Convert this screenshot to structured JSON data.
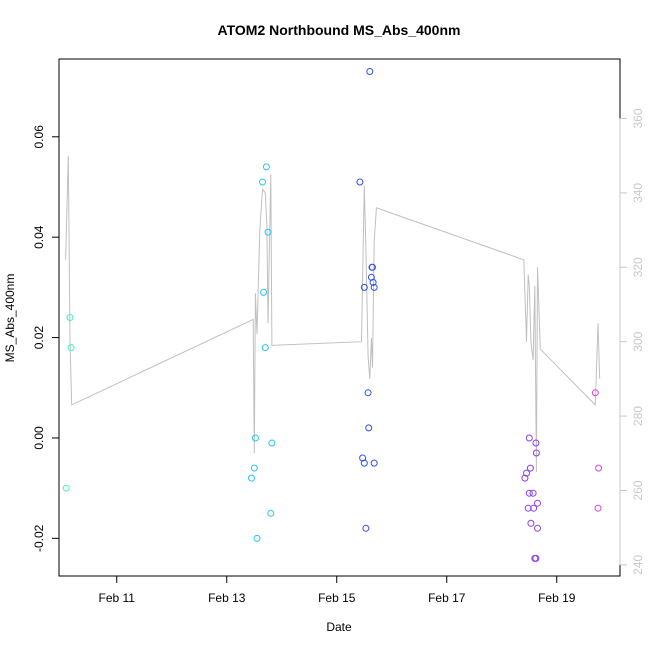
{
  "chart_data": {
    "type": "scatter",
    "title": "ATOM2 Northbound MS_Abs_400nm",
    "xlabel": "Date",
    "ylabel": "MS_Abs_400nm",
    "x_ticks": [
      "Feb 11",
      "Feb 13",
      "Feb 15",
      "Feb 17",
      "Feb 19"
    ],
    "x_tick_days": [
      11,
      13,
      15,
      17,
      19
    ],
    "xlim": [
      9.95,
      20.15
    ],
    "ylim": [
      -0.0275,
      0.0755
    ],
    "y_ticks": [
      -0.02,
      0.0,
      0.02,
      0.04,
      0.06
    ],
    "y_tick_labels": [
      "-0.02",
      "0.00",
      "0.02",
      "0.04",
      "0.06"
    ],
    "y2lim": [
      237,
      376
    ],
    "y2_ticks": [
      240,
      260,
      280,
      300,
      320,
      340,
      360
    ],
    "y2_tick_labels": [
      "240",
      "260",
      "280",
      "300",
      "320",
      "340",
      "360"
    ],
    "grid": false,
    "legend": "none",
    "series": [
      {
        "color": "#3df5c0",
        "points": [
          [
            10.08,
            -0.01
          ],
          [
            10.15,
            0.024
          ],
          [
            10.17,
            0.018
          ]
        ]
      },
      {
        "color": "#28c6ee",
        "points": [
          [
            13.45,
            -0.008
          ],
          [
            13.5,
            -0.006
          ],
          [
            13.52,
            0.0
          ],
          [
            13.55,
            -0.02
          ],
          [
            13.65,
            0.051
          ],
          [
            13.67,
            0.029
          ],
          [
            13.7,
            0.018
          ],
          [
            13.72,
            0.054
          ],
          [
            13.75,
            0.041
          ],
          [
            13.8,
            -0.015
          ],
          [
            13.82,
            -0.001
          ]
        ]
      },
      {
        "color": "#2f4ff0",
        "points": [
          [
            15.42,
            0.051
          ],
          [
            15.47,
            -0.004
          ],
          [
            15.5,
            0.03
          ],
          [
            15.5,
            -0.005
          ],
          [
            15.53,
            -0.018
          ],
          [
            15.57,
            0.009
          ],
          [
            15.58,
            0.002
          ],
          [
            15.6,
            0.073
          ],
          [
            15.63,
            0.032
          ],
          [
            15.64,
            0.034
          ],
          [
            15.65,
            0.034
          ],
          [
            15.66,
            0.031
          ],
          [
            15.68,
            0.03
          ],
          [
            15.68,
            -0.005
          ]
        ]
      },
      {
        "color": "#8a3ff0",
        "points": [
          [
            18.42,
            -0.008
          ],
          [
            18.45,
            -0.007
          ],
          [
            18.48,
            -0.014
          ],
          [
            18.5,
            0.0
          ],
          [
            18.5,
            -0.011
          ],
          [
            18.52,
            -0.006
          ],
          [
            18.53,
            -0.017
          ],
          [
            18.57,
            -0.011
          ],
          [
            18.58,
            -0.014
          ],
          [
            18.6,
            -0.024
          ],
          [
            18.62,
            -0.024
          ],
          [
            18.62,
            -0.001
          ],
          [
            18.63,
            -0.003
          ],
          [
            18.65,
            -0.013
          ],
          [
            18.65,
            -0.018
          ]
        ]
      },
      {
        "color": "#e040e0",
        "points": [
          [
            19.7,
            0.009
          ],
          [
            19.75,
            -0.014
          ],
          [
            19.76,
            -0.006
          ]
        ]
      }
    ],
    "line_series": {
      "color": "#c0c0c0",
      "axis": "right",
      "points": [
        [
          10.07,
          322
        ],
        [
          10.12,
          350
        ],
        [
          10.15,
          300
        ],
        [
          10.18,
          283
        ],
        [
          13.48,
          306
        ],
        [
          13.5,
          270
        ],
        [
          13.52,
          313
        ],
        [
          13.55,
          302
        ],
        [
          13.6,
          330
        ],
        [
          13.65,
          341
        ],
        [
          13.7,
          340
        ],
        [
          13.73,
          331
        ],
        [
          13.75,
          305
        ],
        [
          13.8,
          345
        ],
        [
          13.82,
          299
        ],
        [
          15.45,
          300
        ],
        [
          15.5,
          342
        ],
        [
          15.53,
          325
        ],
        [
          15.57,
          296
        ],
        [
          15.6,
          290
        ],
        [
          15.63,
          301
        ],
        [
          15.65,
          293
        ],
        [
          15.68,
          327
        ],
        [
          15.72,
          336
        ],
        [
          18.4,
          322
        ],
        [
          18.45,
          300
        ],
        [
          18.48,
          318
        ],
        [
          18.5,
          315
        ],
        [
          18.53,
          300
        ],
        [
          18.57,
          295
        ],
        [
          18.6,
          315
        ],
        [
          18.63,
          265
        ],
        [
          18.65,
          320
        ],
        [
          18.7,
          298
        ],
        [
          19.7,
          283
        ],
        [
          19.75,
          305
        ],
        [
          19.78,
          290
        ]
      ]
    }
  }
}
